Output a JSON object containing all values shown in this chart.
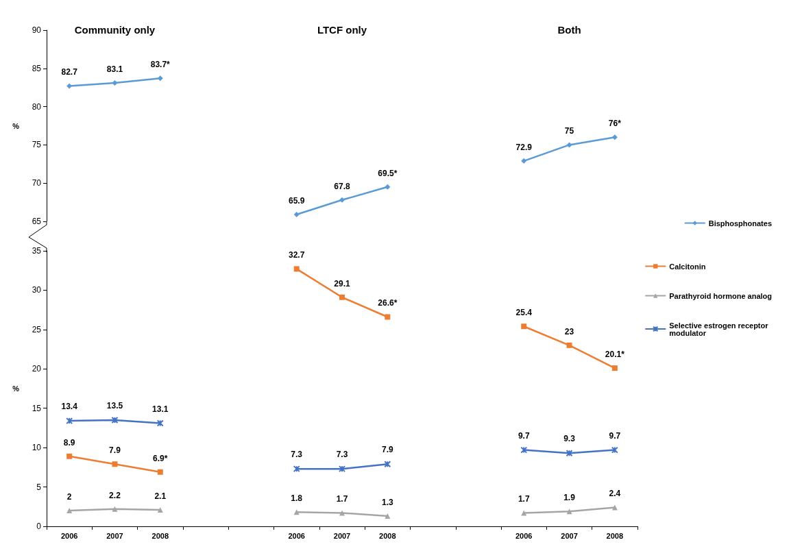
{
  "chart_data": [
    {
      "type": "line",
      "annotations": [
        "Community only",
        "LTCF only",
        "Both"
      ],
      "categories": [
        "2006",
        "2007",
        "2008",
        null,
        null,
        "2006",
        "2007",
        "2008",
        null,
        null,
        "2006",
        "2007",
        "2008"
      ],
      "ylabel": "%",
      "ylim": [
        65,
        90
      ],
      "yticks": [
        65,
        70,
        75,
        80,
        85,
        90
      ],
      "tick_labels": "y",
      "legend": "bottom right",
      "series": [
        {
          "name": "Bisphosphonates",
          "color": "#5b9bd5",
          "marker": "diamond",
          "values": [
            82.7,
            83.1,
            83.7,
            null,
            null,
            65.9,
            67.8,
            69.5,
            null,
            null,
            72.9,
            75,
            76
          ],
          "value_labels": [
            "82.7",
            "83.1",
            "83.7*",
            null,
            null,
            "65.9",
            "67.8",
            "69.5*",
            null,
            null,
            "72.9",
            "75",
            "76*"
          ]
        }
      ]
    },
    {
      "type": "line",
      "categories": [
        "2006",
        "2007",
        "2008",
        null,
        null,
        "2006",
        "2007",
        "2008",
        null,
        null,
        "2006",
        "2007",
        "2008"
      ],
      "ylabel": "%",
      "ylim": [
        0,
        35
      ],
      "yticks": [
        0,
        5,
        10,
        15,
        20,
        25,
        30,
        35
      ],
      "legend": "top right",
      "series": [
        {
          "name": "Calcitonin",
          "color": "#ed7d31",
          "marker": "square",
          "values": [
            8.9,
            7.9,
            6.9,
            null,
            null,
            32.7,
            29.1,
            26.6,
            null,
            null,
            25.4,
            23,
            20.1
          ],
          "value_labels": [
            "8.9",
            "7.9",
            "6.9*",
            null,
            null,
            "32.7",
            "29.1",
            "26.6*",
            null,
            null,
            "25.4",
            "23",
            "20.1*"
          ]
        },
        {
          "name": "Parathyroid hormone analog",
          "color": "#a5a5a5",
          "marker": "triangle",
          "values": [
            2,
            2.2,
            2.1,
            null,
            null,
            1.8,
            1.7,
            1.3,
            null,
            null,
            1.7,
            1.9,
            2.4
          ],
          "value_labels": [
            "2",
            "2.2",
            "2.1",
            null,
            null,
            "1.8",
            "1.7",
            "1.3",
            null,
            null,
            "1.7",
            "1.9",
            "2.4"
          ]
        },
        {
          "name": "Selective estrogen receptor modulator",
          "color": "#4472c4",
          "marker": "cross",
          "values": [
            13.4,
            13.5,
            13.1,
            null,
            null,
            7.3,
            7.3,
            7.9,
            null,
            null,
            9.7,
            9.3,
            9.7
          ],
          "value_labels": [
            "13.4",
            "13.5",
            "13.1",
            null,
            null,
            "7.3",
            "7.3",
            "7.9",
            null,
            null,
            "9.7",
            "9.3",
            "9.7"
          ]
        }
      ]
    }
  ]
}
